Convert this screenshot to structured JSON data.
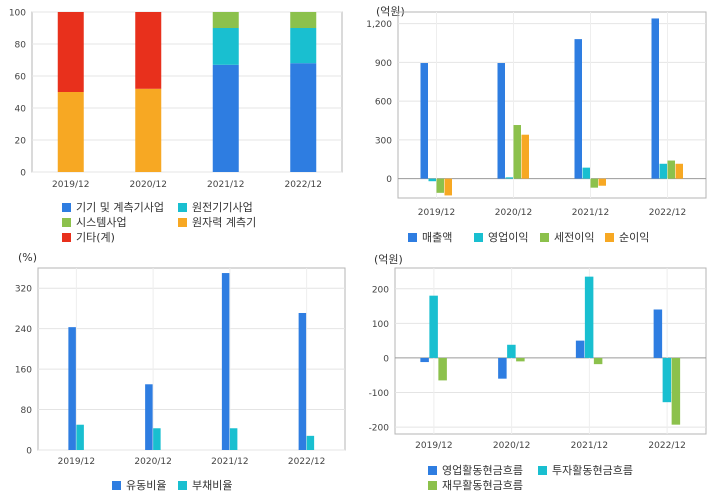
{
  "chart_data": [
    {
      "id": "segments",
      "type": "bar",
      "stacked": true,
      "categories": [
        "2019/12",
        "2020/12",
        "2021/12",
        "2022/12"
      ],
      "ylim": [
        0,
        100
      ],
      "yticks": [
        0,
        20,
        40,
        60,
        80,
        100
      ],
      "unit": "",
      "series": [
        {
          "name": "기기 및 계측기사업",
          "color": "#2e7de1",
          "values": [
            0,
            0,
            67,
            68
          ]
        },
        {
          "name": "원전기기사업",
          "color": "#19bfd0",
          "values": [
            0,
            0,
            23,
            22
          ]
        },
        {
          "name": "시스템사업",
          "color": "#8cc14c",
          "values": [
            0,
            0,
            10,
            10
          ]
        },
        {
          "name": "원자력 계측기",
          "color": "#f7a823",
          "values": [
            50,
            52,
            0,
            0
          ]
        },
        {
          "name": "기타(계)",
          "color": "#e8301c",
          "values": [
            50,
            48,
            0,
            0
          ]
        }
      ]
    },
    {
      "id": "income",
      "type": "bar",
      "categories": [
        "2019/12",
        "2020/12",
        "2021/12",
        "2022/12"
      ],
      "ylim": [
        -150,
        1290
      ],
      "yticks": [
        0,
        300,
        600,
        900,
        1200
      ],
      "ytick_labels": [
        "0",
        "300",
        "600",
        "900",
        "1,200"
      ],
      "unit": "(억원)",
      "series": [
        {
          "name": "매출액",
          "color": "#2e7de1",
          "values": [
            895,
            895,
            1080,
            1240
          ]
        },
        {
          "name": "영업이익",
          "color": "#19bfd0",
          "values": [
            -20,
            10,
            85,
            115
          ]
        },
        {
          "name": "세전이익",
          "color": "#8cc14c",
          "values": [
            -110,
            415,
            -70,
            140
          ]
        },
        {
          "name": "순이익",
          "color": "#f7a823",
          "values": [
            -130,
            340,
            -55,
            115
          ]
        }
      ]
    },
    {
      "id": "ratios",
      "type": "bar",
      "categories": [
        "2019/12",
        "2020/12",
        "2021/12",
        "2022/12"
      ],
      "ylim": [
        0,
        360
      ],
      "yticks": [
        0,
        80,
        160,
        240,
        320
      ],
      "unit": "(%)",
      "series": [
        {
          "name": "유동비율",
          "color": "#2e7de1",
          "values": [
            243,
            130,
            350,
            271
          ]
        },
        {
          "name": "부채비율",
          "color": "#19bfd0",
          "values": [
            50,
            43,
            43,
            28
          ]
        }
      ]
    },
    {
      "id": "cashflow",
      "type": "bar",
      "categories": [
        "2019/12",
        "2020/12",
        "2021/12",
        "2022/12"
      ],
      "ylim": [
        -220,
        260
      ],
      "yticks": [
        -200,
        -100,
        0,
        100,
        200
      ],
      "unit": "(억원)",
      "series": [
        {
          "name": "영업활동현금흐름",
          "color": "#2e7de1",
          "values": [
            -12,
            -60,
            50,
            140
          ]
        },
        {
          "name": "투자활동현금흐름",
          "color": "#19bfd0",
          "values": [
            180,
            38,
            235,
            -128
          ]
        },
        {
          "name": "재무활동현금흐름",
          "color": "#8cc14c",
          "values": [
            -65,
            -10,
            -18,
            -193
          ]
        }
      ]
    }
  ]
}
